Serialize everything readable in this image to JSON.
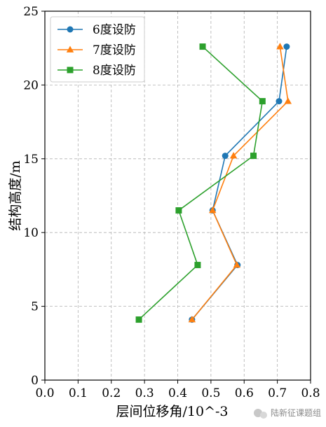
{
  "chart_data": {
    "type": "line",
    "xlabel": "层间位移角/10^-3",
    "ylabel": "结构高度/m",
    "xlim": [
      0.0,
      0.8
    ],
    "ylim": [
      0,
      25
    ],
    "x_ticks": [
      "0.0",
      "0.1",
      "0.2",
      "0.3",
      "0.4",
      "0.5",
      "0.6",
      "0.7",
      "0.8"
    ],
    "y_ticks": [
      "0",
      "5",
      "10",
      "15",
      "20",
      "25"
    ],
    "grid": true,
    "grid_style": "dashed",
    "legend_position": "top-left",
    "series": [
      {
        "name": "6度设防",
        "color": "#1f77b4",
        "marker": "circle",
        "x": [
          0.443,
          0.58,
          0.505,
          0.543,
          0.705,
          0.728
        ],
        "y": [
          4.1,
          7.8,
          11.5,
          15.2,
          18.9,
          22.6
        ]
      },
      {
        "name": "7度设防",
        "color": "#ff7f0e",
        "marker": "triangle",
        "x": [
          0.443,
          0.578,
          0.505,
          0.568,
          0.732,
          0.708
        ],
        "y": [
          4.1,
          7.8,
          11.5,
          15.2,
          18.9,
          22.6
        ]
      },
      {
        "name": "8度设防",
        "color": "#2ca02c",
        "marker": "square",
        "x": [
          0.283,
          0.46,
          0.403,
          0.628,
          0.655,
          0.475
        ],
        "y": [
          4.1,
          7.8,
          11.5,
          15.2,
          18.9,
          22.6
        ]
      }
    ]
  },
  "watermark": {
    "text": "陆新征课题组",
    "icon": "wechat-icon"
  }
}
